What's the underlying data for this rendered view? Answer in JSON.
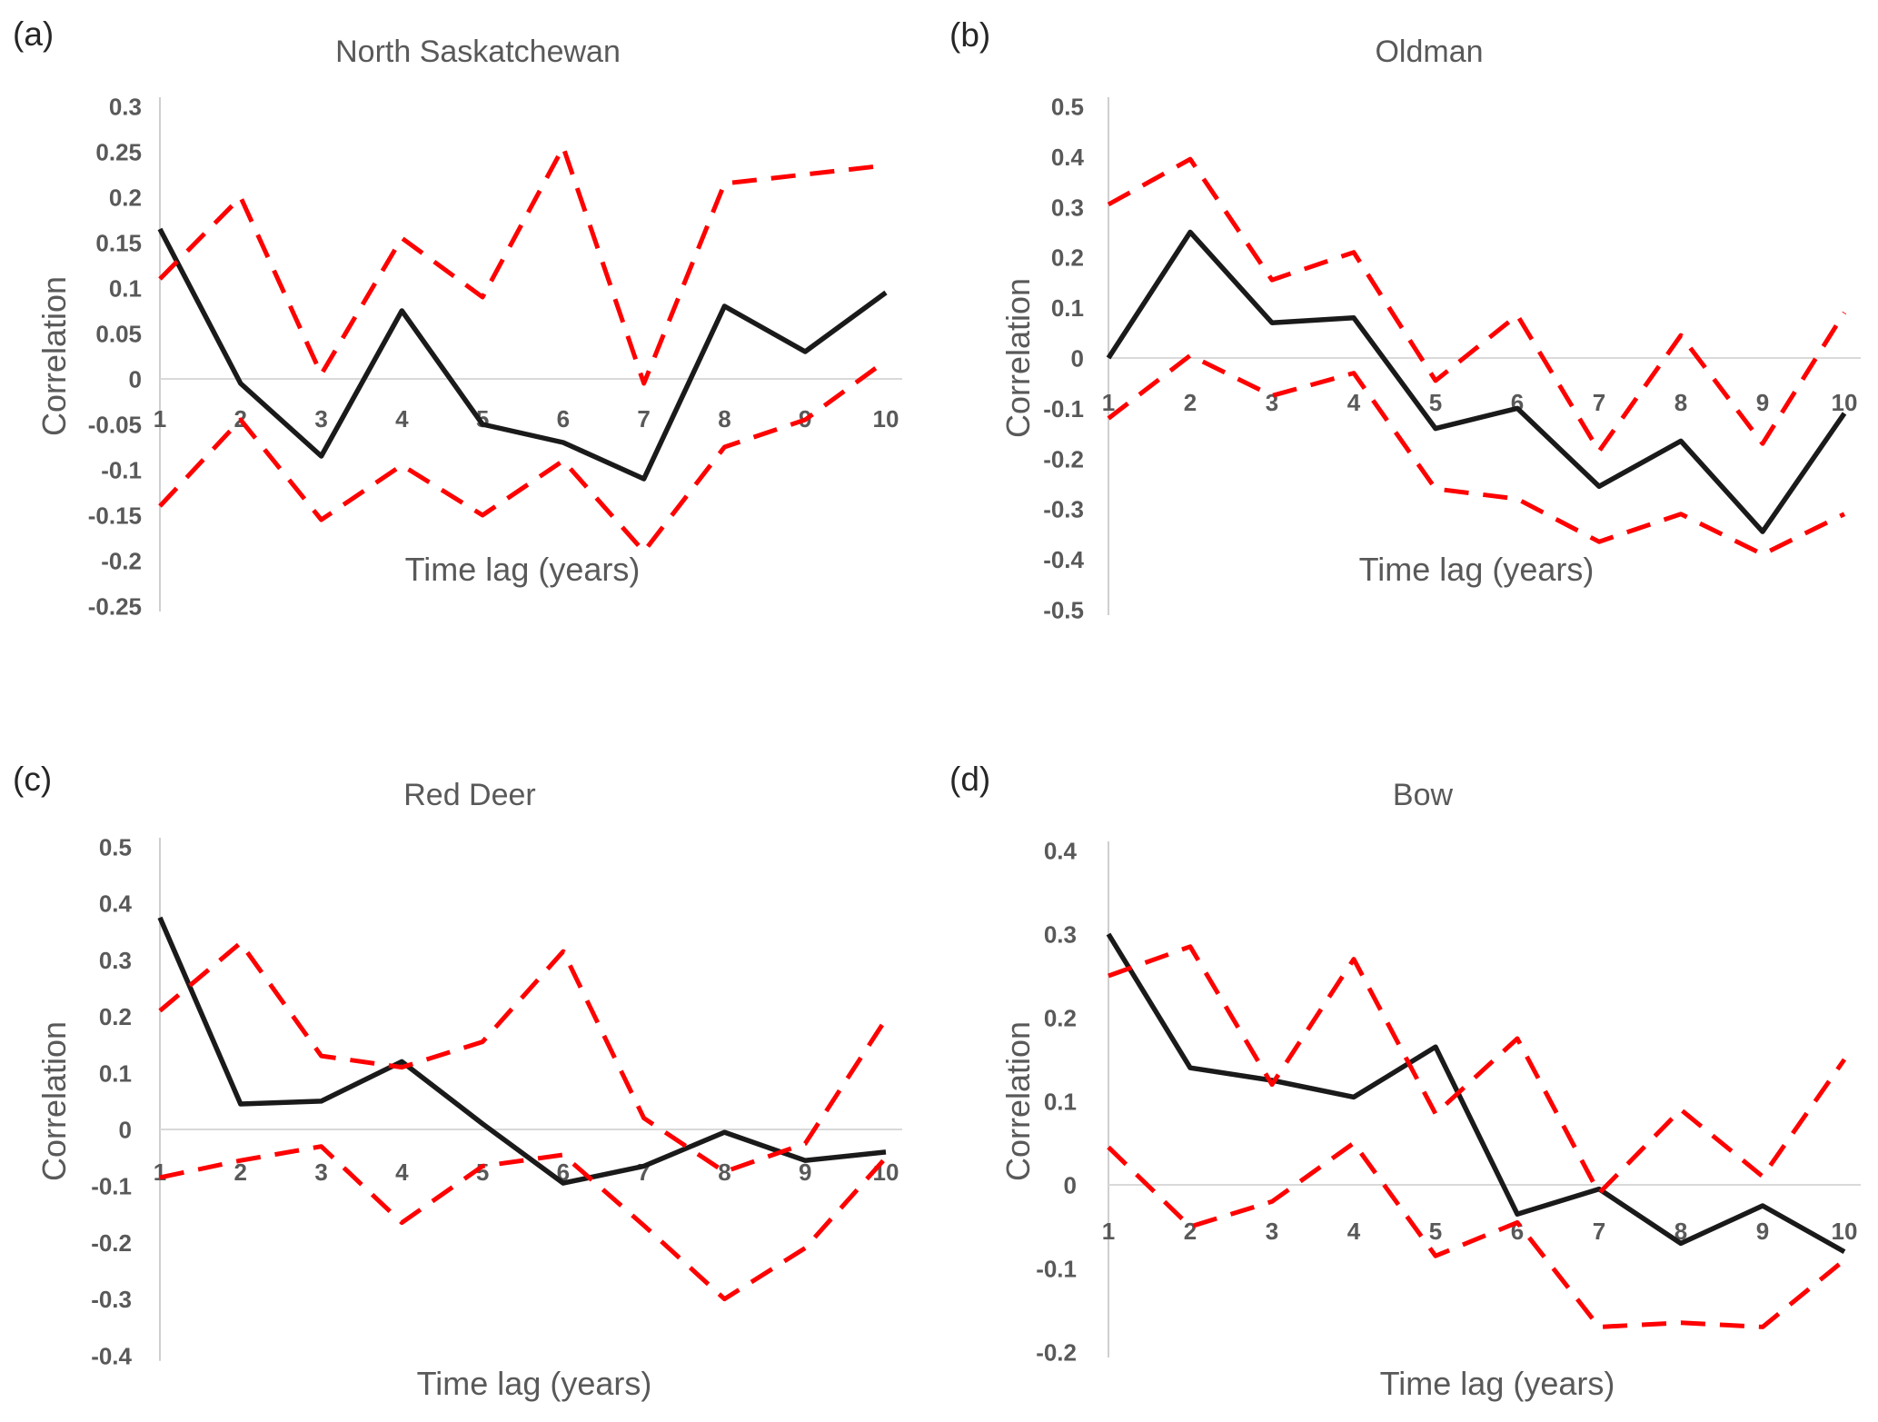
{
  "figure": {
    "background": "#ffffff"
  },
  "colors": {
    "series_line": "#1a1a1a",
    "confidence_bound": "#fe0000",
    "zero_gridline": "#d9d9d9",
    "axis_line": "#cfcfcf",
    "tick_text": "#595959",
    "title_text": "#595959",
    "panel_label_text": "#262626"
  },
  "chart_data": [
    {
      "type": "line",
      "panel_label": "(a)",
      "title": "North Saskatchewan",
      "xlabel": "Time lag (years)",
      "ylabel": "Correlation",
      "x": [
        1,
        2,
        3,
        4,
        5,
        6,
        7,
        8,
        9,
        10
      ],
      "x_tick_labels": [
        "1",
        "2",
        "3",
        "4",
        "5",
        "6",
        "7",
        "8",
        "9",
        "10"
      ],
      "ylim": [
        -0.25,
        0.3
      ],
      "ytick_step": 0.05,
      "y_tick_labels": [
        "0.3",
        "0.25",
        "0.2",
        "0.15",
        "0.1",
        "0.05",
        "0",
        "-0.05",
        "-0.1",
        "-0.15",
        "-0.2",
        "-0.25"
      ],
      "grid": "zero-line-only",
      "legend": "none",
      "series": [
        {
          "name": "correlation",
          "style": "solid-black",
          "values": [
            0.165,
            -0.005,
            -0.085,
            0.075,
            -0.05,
            -0.07,
            -0.11,
            0.08,
            0.03,
            0.095
          ]
        },
        {
          "name": "upper-confidence-bound",
          "style": "dashed-red",
          "values": [
            0.11,
            0.2,
            0.005,
            0.155,
            0.09,
            0.255,
            -0.005,
            0.215,
            0.225,
            0.235
          ]
        },
        {
          "name": "lower-confidence-bound",
          "style": "dashed-red",
          "values": [
            -0.14,
            -0.045,
            -0.155,
            -0.095,
            -0.15,
            -0.09,
            -0.19,
            -0.075,
            -0.045,
            0.02
          ]
        }
      ]
    },
    {
      "type": "line",
      "panel_label": "(b)",
      "title": "Oldman",
      "xlabel": "Time lag (years)",
      "ylabel": "Correlation",
      "x": [
        1,
        2,
        3,
        4,
        5,
        6,
        7,
        8,
        9,
        10
      ],
      "x_tick_labels": [
        "1",
        "2",
        "3",
        "4",
        "5",
        "6",
        "7",
        "8",
        "9",
        "10"
      ],
      "ylim": [
        -0.5,
        0.5
      ],
      "ytick_step": 0.1,
      "y_tick_labels": [
        "0.5",
        "0.4",
        "0.3",
        "0.2",
        "0.1",
        "0",
        "-0.1",
        "-0.2",
        "-0.3",
        "-0.4",
        "-0.5"
      ],
      "grid": "zero-line-only",
      "legend": "none",
      "series": [
        {
          "name": "correlation",
          "style": "solid-black",
          "values": [
            0.0,
            0.25,
            0.07,
            0.08,
            -0.14,
            -0.1,
            -0.255,
            -0.165,
            -0.345,
            -0.11
          ]
        },
        {
          "name": "upper-confidence-bound",
          "style": "dashed-red",
          "values": [
            0.305,
            0.395,
            0.155,
            0.21,
            -0.045,
            0.085,
            -0.185,
            0.045,
            -0.17,
            0.09
          ]
        },
        {
          "name": "lower-confidence-bound",
          "style": "dashed-red",
          "values": [
            -0.12,
            0.005,
            -0.075,
            -0.03,
            -0.26,
            -0.28,
            -0.365,
            -0.31,
            -0.39,
            -0.31
          ]
        }
      ]
    },
    {
      "type": "line",
      "panel_label": "(c)",
      "title": "Red Deer",
      "xlabel": "Time lag (years)",
      "ylabel": "Correlation",
      "x": [
        1,
        2,
        3,
        4,
        5,
        6,
        7,
        8,
        9,
        10
      ],
      "x_tick_labels": [
        "1",
        "2",
        "3",
        "4",
        "5",
        "6",
        "7",
        "8",
        "9",
        "10"
      ],
      "ylim": [
        -0.4,
        0.5
      ],
      "ytick_step": 0.1,
      "y_tick_labels": [
        "0.5",
        "0.4",
        "0.3",
        "0.2",
        "0.1",
        "0",
        "-0.1",
        "-0.2",
        "-0.3",
        "-0.4"
      ],
      "grid": "zero-line-only",
      "legend": "none",
      "series": [
        {
          "name": "correlation",
          "style": "solid-black",
          "values": [
            0.375,
            0.045,
            0.05,
            0.12,
            0.01,
            -0.095,
            -0.065,
            -0.005,
            -0.055,
            -0.04
          ]
        },
        {
          "name": "upper-confidence-bound",
          "style": "dashed-red",
          "values": [
            0.21,
            0.33,
            0.13,
            0.11,
            0.155,
            0.315,
            0.02,
            -0.075,
            -0.025,
            0.195
          ]
        },
        {
          "name": "lower-confidence-bound",
          "style": "dashed-red",
          "values": [
            -0.085,
            -0.055,
            -0.03,
            -0.165,
            -0.065,
            -0.045,
            -0.17,
            -0.3,
            -0.21,
            -0.05
          ]
        }
      ]
    },
    {
      "type": "line",
      "panel_label": "(d)",
      "title": "Bow",
      "xlabel": "Time lag (years)",
      "ylabel": "Correlation",
      "x": [
        1,
        2,
        3,
        4,
        5,
        6,
        7,
        8,
        9,
        10
      ],
      "x_tick_labels": [
        "1",
        "2",
        "3",
        "4",
        "5",
        "6",
        "7",
        "8",
        "9",
        "10"
      ],
      "ylim": [
        -0.2,
        0.4
      ],
      "ytick_step": 0.1,
      "y_tick_labels": [
        "0.4",
        "0.3",
        "0.2",
        "0.1",
        "0",
        "-0.1",
        "-0.2"
      ],
      "grid": "zero-line-only",
      "legend": "none",
      "series": [
        {
          "name": "correlation",
          "style": "solid-black",
          "values": [
            0.3,
            0.14,
            0.125,
            0.105,
            0.165,
            -0.035,
            -0.005,
            -0.07,
            -0.025,
            -0.08
          ]
        },
        {
          "name": "upper-confidence-bound",
          "style": "dashed-red",
          "values": [
            0.25,
            0.285,
            0.12,
            0.27,
            0.085,
            0.175,
            -0.01,
            0.09,
            0.01,
            0.15
          ]
        },
        {
          "name": "lower-confidence-bound",
          "style": "dashed-red",
          "values": [
            0.045,
            -0.05,
            -0.02,
            0.05,
            -0.085,
            -0.045,
            -0.17,
            -0.165,
            -0.17,
            -0.09
          ]
        }
      ]
    }
  ]
}
